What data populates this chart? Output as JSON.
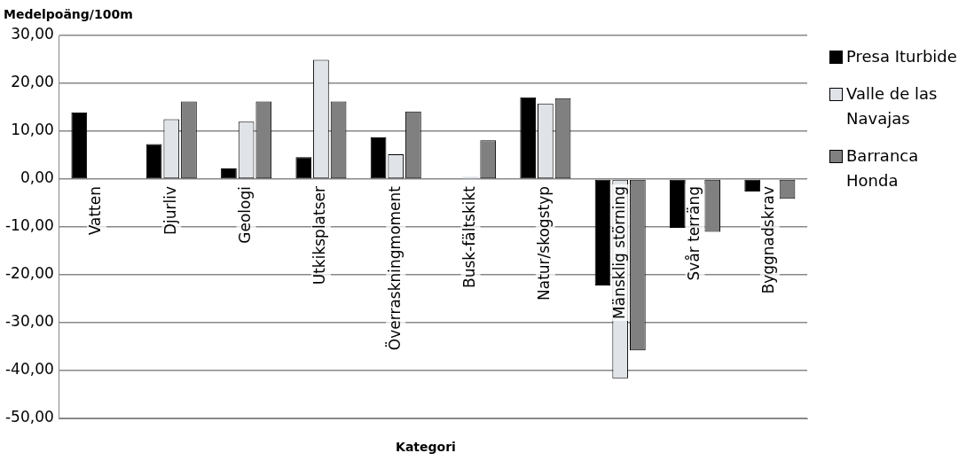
{
  "chart_data": {
    "type": "bar",
    "ylabel": "Medelpoäng/100m",
    "xlabel": "Kategori",
    "categories": [
      "Vatten",
      "Djurliv",
      "Geologi",
      "Utkiksplatser",
      "Överraskningmoment",
      "Busk-fältskikt",
      "Natur/skogstyp",
      "Mänsklig störning",
      "Svår terräng",
      "Byggnadskrav"
    ],
    "series": [
      {
        "name": "Presa Iturbide",
        "color": "#000000",
        "values": [
          13.9,
          7.3,
          2.2,
          4.6,
          8.7,
          0,
          17.1,
          -22.2,
          -10.2,
          -2.6
        ]
      },
      {
        "name": "Valle de las Navajas",
        "color": "#e0e4e8",
        "values": [
          0,
          12.5,
          12.0,
          24.9,
          5.2,
          0.5,
          15.8,
          -41.6,
          null,
          null
        ]
      },
      {
        "name": "Barranca Honda",
        "color": "#808080",
        "values": [
          0,
          16.2,
          16.2,
          16.2,
          14.1,
          8.1,
          16.9,
          -35.8,
          -11.0,
          -4.1
        ]
      }
    ],
    "ylim": [
      -50,
      30
    ],
    "yticks": [
      {
        "value": -50,
        "label": "-50,00"
      },
      {
        "value": -40,
        "label": "-40,00"
      },
      {
        "value": -30,
        "label": "-30,00"
      },
      {
        "value": -20,
        "label": "-20,00"
      },
      {
        "value": -10,
        "label": "-10,00"
      },
      {
        "value": 0,
        "label": "0,00"
      },
      {
        "value": 10,
        "label": "10,00"
      },
      {
        "value": 20,
        "label": "20,00"
      },
      {
        "value": 30,
        "label": "30,00"
      }
    ],
    "grid": "y",
    "legend": "right"
  }
}
